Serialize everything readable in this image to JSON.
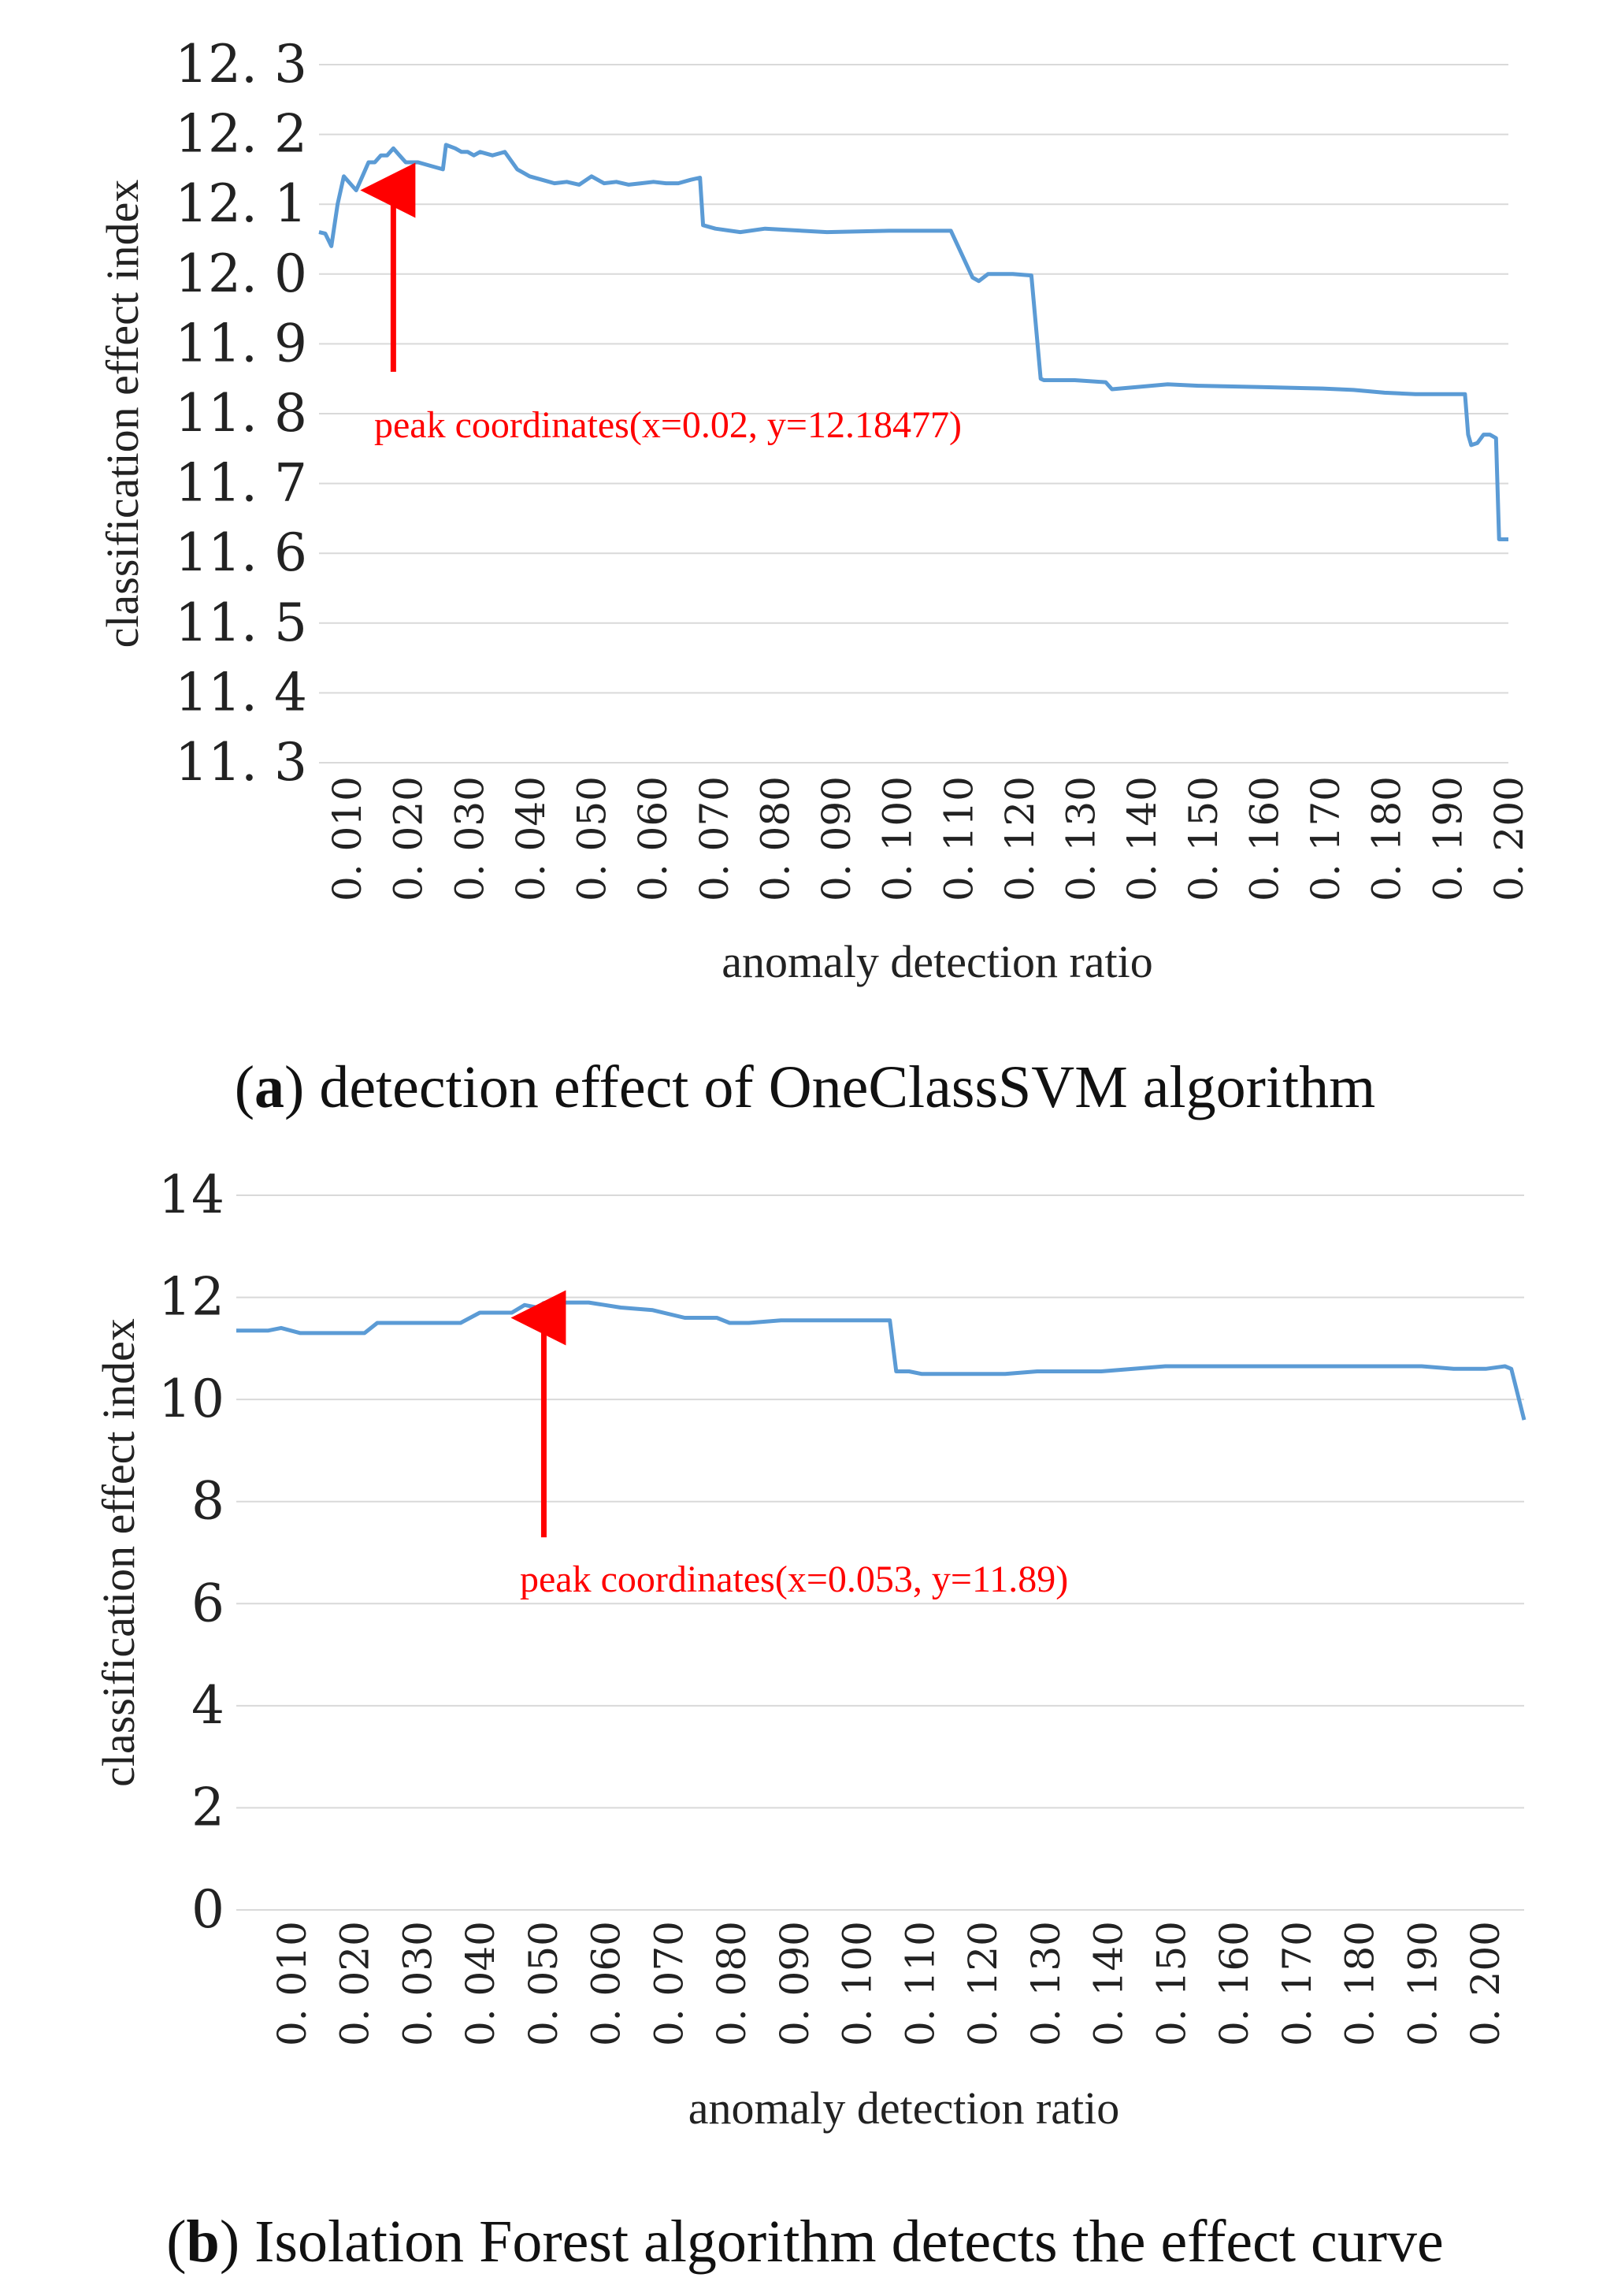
{
  "colors": {
    "line": "#5b9bd5",
    "grid": "#d9d9d9",
    "arrow": "#ff0000",
    "text": "#222222"
  },
  "chart_data": [
    {
      "type": "line",
      "caption": {
        "open": "(",
        "letter": "a",
        "rest": ") detection effect of OneClassSVM algorithm"
      },
      "xlabel": "anomaly detection ratio",
      "ylabel": "classification effect index",
      "ylim": [
        11.3,
        12.3
      ],
      "xlim": [
        0.008,
        0.2
      ],
      "y_ticks": [
        "12. 3",
        "12. 2",
        "12. 1",
        "12. 0",
        "11. 9",
        "11. 8",
        "11. 7",
        "11. 6",
        "11. 5",
        "11. 4",
        "11. 3"
      ],
      "x_ticks": [
        "0. 010",
        "0. 020",
        "0. 030",
        "0. 040",
        "0. 050",
        "0. 060",
        "0. 070",
        "0. 080",
        "0. 090",
        "0. 100",
        "0. 110",
        "0. 120",
        "0. 130",
        "0. 140",
        "0. 150",
        "0. 160",
        "0. 170",
        "0. 180",
        "0. 190",
        "0. 200"
      ],
      "annotation": {
        "text": "peak coordinates(x=0.02, y=12.18477)",
        "x": 0.02,
        "y_from": 11.86,
        "y_to": 12.12
      },
      "series": [
        {
          "name": "OneClassSVM",
          "x": [
            0.008,
            0.009,
            0.01,
            0.011,
            0.012,
            0.013,
            0.014,
            0.015,
            0.016,
            0.017,
            0.018,
            0.019,
            0.02,
            0.021,
            0.022,
            0.024,
            0.026,
            0.028,
            0.0285,
            0.03,
            0.031,
            0.032,
            0.033,
            0.034,
            0.036,
            0.038,
            0.04,
            0.041,
            0.042,
            0.044,
            0.046,
            0.048,
            0.05,
            0.052,
            0.054,
            0.056,
            0.058,
            0.06,
            0.062,
            0.064,
            0.066,
            0.068,
            0.0695,
            0.07,
            0.072,
            0.076,
            0.08,
            0.09,
            0.1,
            0.11,
            0.1135,
            0.1145,
            0.116,
            0.12,
            0.123,
            0.1245,
            0.125,
            0.13,
            0.135,
            0.136,
            0.14,
            0.145,
            0.15,
            0.16,
            0.17,
            0.175,
            0.18,
            0.185,
            0.19,
            0.193,
            0.1935,
            0.194,
            0.195,
            0.196,
            0.197,
            0.198,
            0.1985,
            0.1995,
            0.2
          ],
          "y": [
            12.06,
            12.058,
            12.04,
            12.1,
            12.14,
            12.13,
            12.12,
            12.14,
            12.16,
            12.16,
            12.17,
            12.17,
            12.18,
            12.17,
            12.16,
            12.16,
            12.155,
            12.15,
            12.185,
            12.18,
            12.175,
            12.175,
            12.17,
            12.175,
            12.17,
            12.175,
            12.15,
            12.145,
            12.14,
            12.135,
            12.13,
            12.132,
            12.128,
            12.14,
            12.13,
            12.132,
            12.128,
            12.13,
            12.132,
            12.13,
            12.13,
            12.135,
            12.138,
            12.07,
            12.065,
            12.06,
            12.065,
            12.06,
            12.062,
            12.062,
            11.995,
            11.99,
            12.0,
            12.0,
            11.998,
            11.85,
            11.848,
            11.848,
            11.845,
            11.835,
            11.838,
            11.842,
            11.84,
            11.838,
            11.836,
            11.834,
            11.83,
            11.828,
            11.828,
            11.828,
            11.77,
            11.755,
            11.758,
            11.77,
            11.77,
            11.765,
            11.62,
            11.62,
            11.62
          ]
        }
      ]
    },
    {
      "type": "line",
      "caption": {
        "open": "(",
        "letter": "b",
        "rest": ") Isolation Forest algorithm detects the effect curve"
      },
      "xlabel": "anomaly detection ratio",
      "ylabel": "classification effect index",
      "ylim": [
        0,
        14
      ],
      "xlim": [
        0.005,
        0.206
      ],
      "y_ticks": [
        "14",
        "12",
        "10",
        "8",
        "6",
        "4",
        "2",
        "0"
      ],
      "x_ticks": [
        "0. 010",
        "0. 020",
        "0. 030",
        "0. 040",
        "0. 050",
        "0. 060",
        "0. 070",
        "0. 080",
        "0. 090",
        "0. 100",
        "0. 110",
        "0. 120",
        "0. 130",
        "0. 140",
        "0. 150",
        "0. 160",
        "0. 170",
        "0. 180",
        "0. 190",
        "0. 200"
      ],
      "annotation": {
        "text": "peak coordinates(x=0.053, y=11.89)",
        "x": 0.053,
        "y_from": 7.3,
        "y_to": 11.6
      },
      "series": [
        {
          "name": "Isolation Forest",
          "x": [
            0.005,
            0.01,
            0.012,
            0.015,
            0.018,
            0.02,
            0.025,
            0.027,
            0.03,
            0.035,
            0.04,
            0.043,
            0.045,
            0.048,
            0.05,
            0.052,
            0.053,
            0.056,
            0.06,
            0.065,
            0.07,
            0.075,
            0.08,
            0.082,
            0.085,
            0.09,
            0.095,
            0.1,
            0.105,
            0.107,
            0.108,
            0.11,
            0.112,
            0.12,
            0.125,
            0.13,
            0.14,
            0.15,
            0.16,
            0.17,
            0.18,
            0.19,
            0.195,
            0.2,
            0.203,
            0.204,
            0.206
          ],
          "y": [
            11.35,
            11.35,
            11.4,
            11.3,
            11.3,
            11.3,
            11.3,
            11.5,
            11.5,
            11.5,
            11.5,
            11.7,
            11.7,
            11.7,
            11.85,
            11.8,
            11.89,
            11.9,
            11.9,
            11.8,
            11.75,
            11.6,
            11.6,
            11.5,
            11.5,
            11.55,
            11.55,
            11.55,
            11.55,
            11.55,
            10.55,
            10.55,
            10.5,
            10.5,
            10.5,
            10.55,
            10.55,
            10.65,
            10.65,
            10.65,
            10.65,
            10.65,
            10.6,
            10.6,
            10.65,
            10.6,
            9.6
          ]
        }
      ]
    }
  ]
}
